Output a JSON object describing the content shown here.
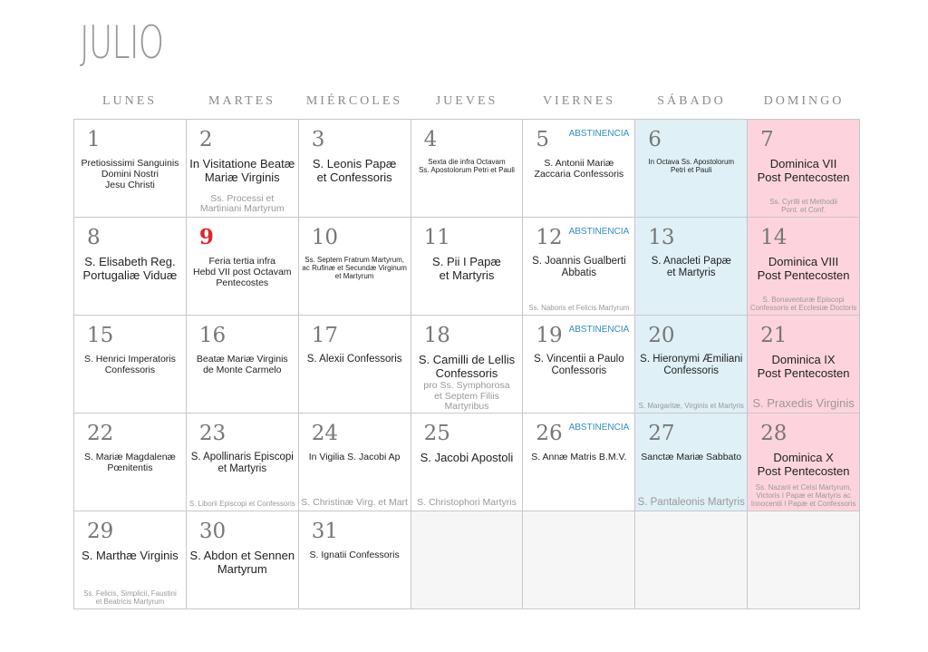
{
  "title": "JULIO",
  "weekdays": [
    "LUNES",
    "MARTES",
    "MIÉRCOLES",
    "JUEVES",
    "VIERNES",
    "SÁBADO",
    "DOMINGO"
  ],
  "days": [
    {
      "n": "1",
      "main": "Pretiosissimi Sanguinis\nDomini Nostri\nJesu Christi",
      "note": ""
    },
    {
      "n": "2",
      "main": "In Visitatione Beatæ\nMariæ Virginis",
      "note": "Ss. Processi et\nMartiniani Martyrum"
    },
    {
      "n": "3",
      "main": "S. Leonis Papæ\net Confessoris",
      "note": ""
    },
    {
      "n": "4",
      "main": "Sexta die infra Octavam\nSs. Apostolorum Petri et Pauli",
      "note": ""
    },
    {
      "n": "5",
      "badge": "ABSTINENCIA",
      "main": "S. Antonii Mariæ\nZaccaria Confessoris",
      "note": ""
    },
    {
      "n": "6",
      "main": "In Octava Ss. Apostolorum\nPetri et Pauli",
      "note": ""
    },
    {
      "n": "7",
      "main": "Dominica VII\nPost Pentecosten",
      "note": "Ss. Cyrilli et Methodii\nPont. et Conf."
    },
    {
      "n": "8",
      "main": "S. Elisabeth Reg.\nPortugaliæ Viduæ",
      "note": ""
    },
    {
      "n": "9",
      "main": "Feria tertia infra\nHebd VII post Octavam\nPentecostes",
      "note": ""
    },
    {
      "n": "10",
      "main": "Ss. Septem Fratrum Martyrum,\nac Rufinæ et Secundæ Virginum\net Martyrum",
      "note": ""
    },
    {
      "n": "11",
      "main": "S. Pii I Papæ\net Martyris",
      "note": ""
    },
    {
      "n": "12",
      "badge": "ABSTINENCIA",
      "main": "S. Joannis Gualberti\nAbbatis",
      "note": "Ss. Naboris et Felicis Martyrum"
    },
    {
      "n": "13",
      "main": "S. Anacleti Papæ\net Martyris",
      "note": ""
    },
    {
      "n": "14",
      "main": "Dominica VIII\nPost Pentecosten",
      "note": "S. Bonaventuræ Episcopi\nConfessoris et Ecclesiæ Doctoris"
    },
    {
      "n": "15",
      "main": "S. Henrici Imperatoris\nConfessoris",
      "note": ""
    },
    {
      "n": "16",
      "main": "Beatæ Mariæ Virginis\nde Monte Carmelo",
      "note": ""
    },
    {
      "n": "17",
      "main": "S. Alexii Confessoris",
      "note": ""
    },
    {
      "n": "18",
      "main": "S. Camilli de Lellis\nConfessoris",
      "note": "pro Ss. Symphorosa\net Septem Filiis Martyribus"
    },
    {
      "n": "19",
      "badge": "ABSTINENCIA",
      "main": "S. Vincentii a Paulo\nConfessoris",
      "note": ""
    },
    {
      "n": "20",
      "main": "S. Hieronymi Æmiliani\nConfessoris",
      "note": "S. Margaritæ, Virginis et Martyris"
    },
    {
      "n": "21",
      "main": "Dominica IX\nPost Pentecosten",
      "note": "S. Praxedis Virginis"
    },
    {
      "n": "22",
      "main": "S. Mariæ Magdalenæ\nPœnitentis",
      "note": ""
    },
    {
      "n": "23",
      "main": "S. Apollinaris Episcopi\net Martyris",
      "note": "S. Liborii Episcopi et Confessoris"
    },
    {
      "n": "24",
      "main": "In Vigilia S. Jacobi Ap",
      "note": "S. Christinæ Virg. et Mart"
    },
    {
      "n": "25",
      "main": "S. Jacobi Apostoli",
      "note": "S. Christophori Martyris"
    },
    {
      "n": "26",
      "badge": "ABSTINENCIA",
      "main": "S. Annæ Matris B.M.V.",
      "note": ""
    },
    {
      "n": "27",
      "main": "Sanctæ Mariæ Sabbato",
      "note": "S. Pantaleonis Martyris"
    },
    {
      "n": "28",
      "main": "Dominica X\nPost Pentecosten",
      "note": "Ss. Nazarii et Celsi Martyrum,\nVictoris I Papæ et Martyris ac\nInnocentii I Papæ et Confessoris"
    },
    {
      "n": "29",
      "main": "S. Marthæ Virginis",
      "note": "Ss. Felicis, Simplicii, Faustini\net Beatricis Martyrum"
    },
    {
      "n": "30",
      "main": "S. Abdon et Sennen\nMartyrum",
      "note": ""
    },
    {
      "n": "31",
      "main": "S. Ignatii Confessoris",
      "note": ""
    }
  ],
  "colors": {
    "saturday": "#dff0f6",
    "sunday": "#fdd4dd",
    "abstinencia": "#2d8fc4",
    "highlight_day": "#e0242c"
  }
}
